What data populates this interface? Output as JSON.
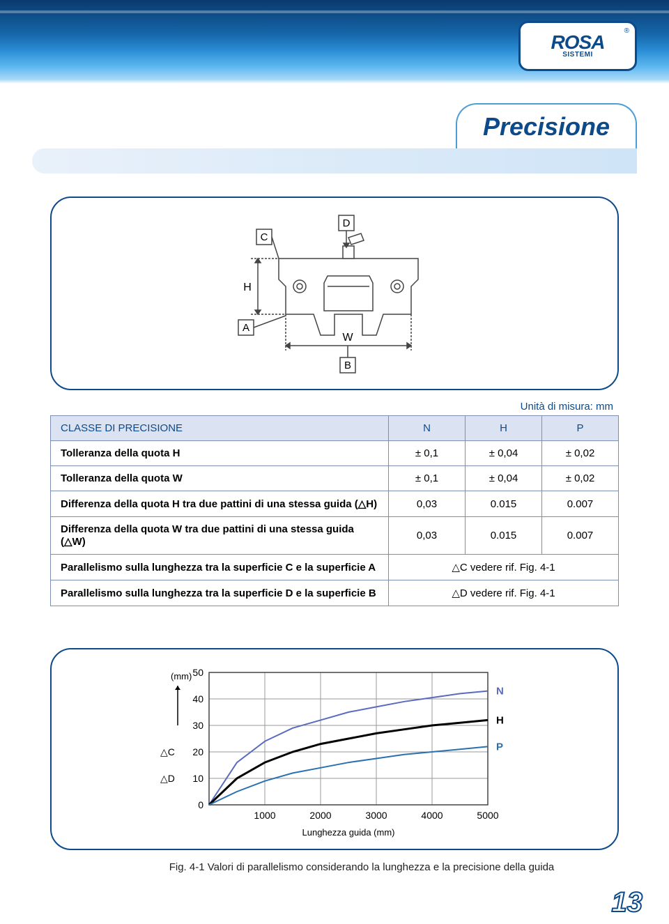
{
  "header": {
    "logo_main": "ROSA",
    "logo_sub": "SISTEMI",
    "logo_reg": "®"
  },
  "title": "Precisione",
  "diagram": {
    "label_D": "D",
    "label_C": "C",
    "label_H": "H",
    "label_A": "A",
    "label_W": "W",
    "label_B": "B",
    "line_color": "#444444",
    "box_fill": "#ffffff"
  },
  "unit_label": "Unità di misura: mm",
  "table": {
    "header": [
      "CLASSE DI PRECISIONE",
      "N",
      "H",
      "P"
    ],
    "rows": [
      {
        "label": "Tolleranza della quota H",
        "vals": [
          "± 0,1",
          "± 0,04",
          "± 0,02"
        ]
      },
      {
        "label": "Tolleranza della quota W",
        "vals": [
          "± 0,1",
          "± 0,04",
          "± 0,02"
        ]
      },
      {
        "label": "Differenza della quota H tra due pattini di una stessa guida (△H)",
        "vals": [
          "0,03",
          "0.015",
          "0.007"
        ]
      },
      {
        "label": "Differenza della quota W tra due pattini di una stessa guida (△W)",
        "vals": [
          "0,03",
          "0.015",
          "0.007"
        ]
      }
    ],
    "merged_rows": [
      {
        "label": "Parallelismo sulla lunghezza tra la superficie C e la superficie A",
        "val": "△C vedere rif. Fig. 4-1"
      },
      {
        "label": "Parallelismo sulla lunghezza tra la superficie D e la superficie B",
        "val": "△D vedere rif. Fig. 4-1"
      }
    ]
  },
  "chart": {
    "type": "line",
    "y_axis_label_top": "(mm)",
    "y_ticks": [
      0,
      10,
      20,
      30,
      40,
      50
    ],
    "x_ticks": [
      1000,
      2000,
      3000,
      4000,
      5000
    ],
    "y_left_labels": [
      "△C",
      "△D"
    ],
    "x_axis_label": "Lunghezza guida (mm)",
    "xlim": [
      0,
      5000
    ],
    "ylim": [
      0,
      50
    ],
    "grid_color": "#999999",
    "border_color": "#444444",
    "background_color": "#ffffff",
    "label_fontsize": 12,
    "series": [
      {
        "name": "N",
        "color": "#5a6bbf",
        "line_width": 2,
        "points": [
          [
            0,
            0
          ],
          [
            500,
            16
          ],
          [
            1000,
            24
          ],
          [
            1500,
            29
          ],
          [
            2000,
            32
          ],
          [
            2500,
            35
          ],
          [
            3000,
            37
          ],
          [
            3500,
            39
          ],
          [
            4000,
            40.5
          ],
          [
            4500,
            42
          ],
          [
            5000,
            43
          ]
        ]
      },
      {
        "name": "H",
        "color": "#000000",
        "line_width": 3,
        "points": [
          [
            0,
            0
          ],
          [
            500,
            10
          ],
          [
            1000,
            16
          ],
          [
            1500,
            20
          ],
          [
            2000,
            23
          ],
          [
            2500,
            25
          ],
          [
            3000,
            27
          ],
          [
            3500,
            28.5
          ],
          [
            4000,
            30
          ],
          [
            4500,
            31
          ],
          [
            5000,
            32
          ]
        ]
      },
      {
        "name": "P",
        "color": "#2a6fb0",
        "line_width": 2,
        "points": [
          [
            0,
            0
          ],
          [
            500,
            5
          ],
          [
            1000,
            9
          ],
          [
            1500,
            12
          ],
          [
            2000,
            14
          ],
          [
            2500,
            16
          ],
          [
            3000,
            17.5
          ],
          [
            3500,
            19
          ],
          [
            4000,
            20
          ],
          [
            4500,
            21
          ],
          [
            5000,
            22
          ]
        ]
      }
    ]
  },
  "figure_caption": "Fig. 4-1   Valori di parallelismo considerando la lunghezza  e la precisione della guida",
  "page_number": "13"
}
